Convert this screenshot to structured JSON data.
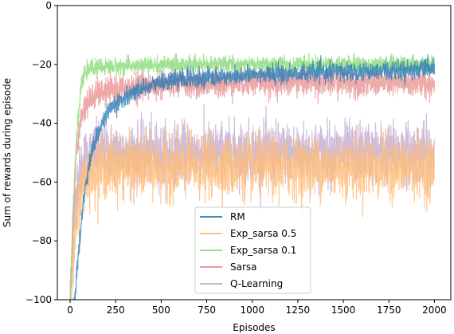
{
  "chart_data": {
    "type": "line",
    "title": "",
    "xlabel": "Episodes",
    "ylabel": "Sum of rewards during episode",
    "xlim": [
      -70,
      2090
    ],
    "ylim": [
      -100,
      0
    ],
    "x_ticks": [
      0,
      250,
      500,
      750,
      1000,
      1250,
      1500,
      1750,
      2000
    ],
    "y_ticks": [
      0,
      -20,
      -40,
      -60,
      -80,
      -100
    ],
    "legend_position": "lower center",
    "n_episodes": 2000,
    "series": [
      {
        "name": "RM",
        "color": "#1f77b4",
        "alpha": 0.75,
        "anchor_x": [
          0,
          25,
          45,
          70,
          100,
          140,
          200,
          300,
          400,
          500,
          600,
          750,
          900,
          1000,
          1250,
          1500,
          1750,
          2000
        ],
        "anchor_y": [
          -110,
          -100,
          -85,
          -68,
          -55,
          -45,
          -37,
          -31,
          -28,
          -26,
          -25,
          -24.5,
          -24,
          -23.5,
          -23,
          -22.5,
          -22,
          -21.5
        ],
        "noise": 1.5
      },
      {
        "name": "Exp_sarsa 0.5",
        "color": "#ffbb78",
        "alpha": 0.8,
        "anchor_x": [
          0,
          15,
          30,
          50,
          80,
          120,
          200,
          500,
          1000,
          1500,
          2000
        ],
        "anchor_y": [
          -100,
          -90,
          -78,
          -65,
          -58,
          -56,
          -55,
          -55,
          -55,
          -55,
          -55
        ],
        "noise": 5
      },
      {
        "name": "Exp_sarsa 0.1",
        "color": "#98df8a",
        "alpha": 0.9,
        "anchor_x": [
          0,
          15,
          35,
          60,
          80,
          120,
          300,
          600,
          1000,
          1500,
          2000
        ],
        "anchor_y": [
          -100,
          -70,
          -45,
          -28,
          -23,
          -21,
          -20.5,
          -20,
          -20,
          -20,
          -20
        ],
        "noise": 1.3
      },
      {
        "name": "Sarsa",
        "color": "#e88c8c",
        "alpha": 0.75,
        "anchor_x": [
          0,
          15,
          35,
          60,
          90,
          150,
          300,
          500,
          800,
          1000,
          1500,
          2000
        ],
        "anchor_y": [
          -100,
          -75,
          -50,
          -38,
          -33,
          -30,
          -28,
          -27,
          -26.5,
          -26,
          -26,
          -26.5
        ],
        "noise": 2.3
      },
      {
        "name": "Q-Learning",
        "color": "#c5b0d5",
        "alpha": 0.85,
        "anchor_x": [
          0,
          15,
          40,
          80,
          150,
          300,
          500,
          1000,
          1500,
          2000
        ],
        "anchor_y": [
          -100,
          -80,
          -60,
          -52,
          -50,
          -50,
          -50,
          -50,
          -50,
          -50
        ],
        "noise": 5
      }
    ]
  }
}
